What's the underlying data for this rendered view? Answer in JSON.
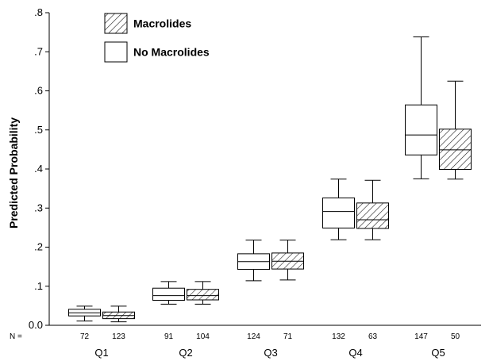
{
  "chart_data": {
    "type": "boxplot",
    "title": "",
    "xlabel": "",
    "ylabel": "Predicted Probability",
    "ylim": [
      0,
      0.8
    ],
    "yticks": [
      {
        "value": 0.0,
        "label": "0.0"
      },
      {
        "value": 0.1,
        "label": ".1"
      },
      {
        "value": 0.2,
        "label": ".2"
      },
      {
        "value": 0.3,
        "label": ".3"
      },
      {
        "value": 0.4,
        "label": ".4"
      },
      {
        "value": 0.5,
        "label": ".5"
      },
      {
        "value": 0.6,
        "label": ".6"
      },
      {
        "value": 0.7,
        "label": ".7"
      },
      {
        "value": 0.8,
        "label": ".8"
      }
    ],
    "categories": [
      "Q1",
      "Q2",
      "Q3",
      "Q4",
      "Q5"
    ],
    "n_prefix": "N =",
    "legend": {
      "position": "top-left",
      "entries": [
        {
          "label": "Macrolides",
          "pattern": "hatched"
        },
        {
          "label": "No Macrolides",
          "pattern": "plain"
        }
      ]
    },
    "series": [
      {
        "name": "No Macrolides",
        "pattern": "plain",
        "boxes": [
          {
            "n": "72",
            "min": 0.011,
            "q1": 0.024,
            "median": 0.032,
            "q3": 0.041,
            "max": 0.049
          },
          {
            "n": "91",
            "min": 0.054,
            "q1": 0.064,
            "median": 0.076,
            "q3": 0.095,
            "max": 0.112
          },
          {
            "n": "124",
            "min": 0.114,
            "q1": 0.143,
            "median": 0.163,
            "q3": 0.183,
            "max": 0.218
          },
          {
            "n": "132",
            "min": 0.219,
            "q1": 0.249,
            "median": 0.291,
            "q3": 0.326,
            "max": 0.374
          },
          {
            "n": "147",
            "min": 0.375,
            "q1": 0.436,
            "median": 0.487,
            "q3": 0.564,
            "max": 0.738
          }
        ]
      },
      {
        "name": "Macrolides",
        "pattern": "hatched",
        "boxes": [
          {
            "n": "123",
            "min": 0.009,
            "q1": 0.017,
            "median": 0.025,
            "q3": 0.034,
            "max": 0.049
          },
          {
            "n": "104",
            "min": 0.054,
            "q1": 0.065,
            "median": 0.076,
            "q3": 0.092,
            "max": 0.112
          },
          {
            "n": "71",
            "min": 0.116,
            "q1": 0.144,
            "median": 0.164,
            "q3": 0.185,
            "max": 0.218
          },
          {
            "n": "63",
            "min": 0.219,
            "q1": 0.248,
            "median": 0.27,
            "q3": 0.313,
            "max": 0.371
          },
          {
            "n": "50",
            "min": 0.374,
            "q1": 0.399,
            "median": 0.449,
            "q3": 0.502,
            "max": 0.625
          }
        ]
      }
    ]
  }
}
